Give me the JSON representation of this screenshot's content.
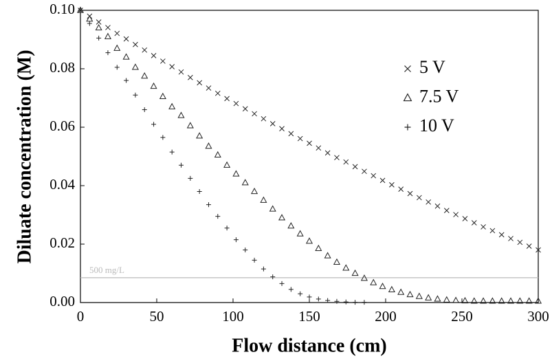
{
  "chart_data": {
    "type": "scatter",
    "xlabel": "Flow distance (cm)",
    "ylabel": "Diluate concentration (M)",
    "xlim": [
      0,
      300
    ],
    "ylim": [
      0,
      0.1
    ],
    "xticks": [
      0,
      50,
      100,
      150,
      200,
      250,
      300
    ],
    "yticks": [
      {
        "value": 0,
        "label": "0.00"
      },
      {
        "value": 0.02,
        "label": "0.02"
      },
      {
        "value": 0.04,
        "label": "0.04"
      },
      {
        "value": 0.06,
        "label": "0.06"
      },
      {
        "value": 0.08,
        "label": "0.08"
      },
      {
        "value": 0.1,
        "label": "0.10"
      }
    ],
    "legend": "upper right",
    "reference_line": {
      "value": 0.0085,
      "label": "500 mg/L",
      "color": "#bbbbbb"
    },
    "series": [
      {
        "name": "5 V",
        "marker": "x",
        "color": "#222222",
        "x": [
          0,
          6,
          12,
          18,
          24,
          30,
          36,
          42,
          48,
          54,
          60,
          66,
          72,
          78,
          84,
          90,
          96,
          102,
          108,
          114,
          120,
          126,
          132,
          138,
          144,
          150,
          156,
          162,
          168,
          174,
          180,
          186,
          192,
          198,
          204,
          210,
          216,
          222,
          228,
          234,
          240,
          246,
          252,
          258,
          264,
          270,
          276,
          282,
          288,
          294,
          300
        ],
        "values": [
          0.1,
          0.098,
          0.096,
          0.0941,
          0.0921,
          0.0902,
          0.0883,
          0.0864,
          0.0845,
          0.0826,
          0.0807,
          0.0789,
          0.077,
          0.0752,
          0.0734,
          0.0716,
          0.0698,
          0.0681,
          0.0663,
          0.0646,
          0.0629,
          0.0612,
          0.0595,
          0.0578,
          0.0561,
          0.0545,
          0.0529,
          0.0512,
          0.0496,
          0.0481,
          0.0465,
          0.0449,
          0.0434,
          0.0418,
          0.0403,
          0.0388,
          0.0373,
          0.0359,
          0.0344,
          0.033,
          0.0315,
          0.0301,
          0.0287,
          0.0273,
          0.0259,
          0.0246,
          0.0232,
          0.0219,
          0.0206,
          0.0193,
          0.018
        ]
      },
      {
        "name": "7.5 V",
        "marker": "triangle",
        "color": "#222222",
        "x": [
          0,
          6,
          12,
          18,
          24,
          30,
          36,
          42,
          48,
          54,
          60,
          66,
          72,
          78,
          84,
          90,
          96,
          102,
          108,
          114,
          120,
          126,
          132,
          138,
          144,
          150,
          156,
          162,
          168,
          174,
          180,
          186,
          192,
          198,
          204,
          210,
          216,
          222,
          228,
          234,
          240,
          246,
          252,
          258,
          264,
          270,
          276,
          282,
          288,
          294,
          300
        ],
        "values": [
          0.1,
          0.097,
          0.094,
          0.091,
          0.087,
          0.084,
          0.0805,
          0.0775,
          0.074,
          0.0705,
          0.067,
          0.064,
          0.0605,
          0.057,
          0.0535,
          0.0505,
          0.047,
          0.044,
          0.041,
          0.038,
          0.035,
          0.032,
          0.029,
          0.0262,
          0.0235,
          0.021,
          0.0185,
          0.016,
          0.0138,
          0.0118,
          0.01,
          0.0083,
          0.0068,
          0.0055,
          0.0044,
          0.0035,
          0.0027,
          0.0021,
          0.0016,
          0.0012,
          0.0009,
          0.0007,
          0.0006,
          0.0005,
          0.0005,
          0.0005,
          0.0005,
          0.0005,
          0.0005,
          0.0005,
          0.0005
        ]
      },
      {
        "name": "10 V",
        "marker": "plus",
        "color": "#222222",
        "x": [
          0,
          6,
          12,
          18,
          24,
          30,
          36,
          42,
          48,
          54,
          60,
          66,
          72,
          78,
          84,
          90,
          96,
          102,
          108,
          114,
          120,
          126,
          132,
          138,
          144,
          150,
          156,
          162,
          168,
          174,
          180,
          186
        ],
        "values": [
          0.1,
          0.0955,
          0.0905,
          0.0855,
          0.0805,
          0.076,
          0.071,
          0.066,
          0.061,
          0.0565,
          0.0515,
          0.047,
          0.0425,
          0.038,
          0.0335,
          0.0295,
          0.0255,
          0.0215,
          0.018,
          0.0145,
          0.0115,
          0.0088,
          0.0065,
          0.0045,
          0.003,
          0.0019,
          0.0012,
          0.0007,
          0.0004,
          0.0002,
          0.0001,
          0.0001
        ]
      }
    ]
  }
}
